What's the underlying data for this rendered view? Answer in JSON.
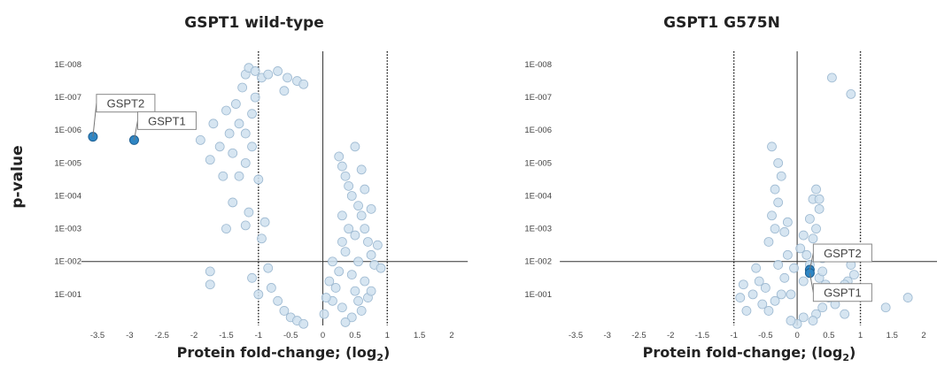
{
  "figure": {
    "ylabel": "p-value",
    "xlabel_main": "Protein fold-change; (log",
    "xlabel_sub": "2",
    "xlabel_close": ")"
  },
  "colors": {
    "background_point_fill": "#cfe0ee",
    "background_point_stroke": "#9db9d1",
    "highlight_fill": "#2f86c4",
    "highlight_stroke": "#1d5f93",
    "axis": "#333333"
  },
  "chart_data": [
    {
      "type": "scatter",
      "title": "GSPT1 wild-type",
      "xlabel": "Protein fold-change; (log2)",
      "ylabel": "p-value",
      "xlim": [
        -3.75,
        2.25
      ],
      "ylim_neglog10": [
        0,
        8.35
      ],
      "x_ticks": [
        "-3.5",
        "-3",
        "-2.5",
        "-2",
        "-1.5",
        "-1",
        "-0.5",
        "0",
        "0.5",
        "1",
        "1.5",
        "2"
      ],
      "y_ticks": [
        {
          "label": "1E-008",
          "v": 8
        },
        {
          "label": "1E-007",
          "v": 7
        },
        {
          "label": "1E-006",
          "v": 6
        },
        {
          "label": "1E-005",
          "v": 5
        },
        {
          "label": "1E-004",
          "v": 4
        },
        {
          "label": "1E-003",
          "v": 3
        },
        {
          "label": "1E-002",
          "v": 2
        },
        {
          "label": "1E-001",
          "v": 1
        }
      ],
      "threshold_p_neglog10": 2,
      "fold_change_thresholds": [
        -1,
        1
      ],
      "highlighted": [
        {
          "label": "GSPT2",
          "x": -3.57,
          "y": 5.8
        },
        {
          "label": "GSPT1",
          "x": -2.93,
          "y": 5.7
        }
      ],
      "background_points": [
        [
          -1.9,
          5.7
        ],
        [
          -1.75,
          5.1
        ],
        [
          -1.7,
          6.2
        ],
        [
          -1.6,
          5.5
        ],
        [
          -1.55,
          4.6
        ],
        [
          -1.5,
          6.6
        ],
        [
          -1.45,
          5.9
        ],
        [
          -1.4,
          5.3
        ],
        [
          -1.4,
          3.8
        ],
        [
          -1.35,
          6.8
        ],
        [
          -1.3,
          6.2
        ],
        [
          -1.3,
          4.6
        ],
        [
          -1.25,
          7.3
        ],
        [
          -1.2,
          5.9
        ],
        [
          -1.2,
          5.0
        ],
        [
          -1.15,
          3.5
        ],
        [
          -1.1,
          6.5
        ],
        [
          -1.1,
          5.5
        ],
        [
          -1.05,
          7.0
        ],
        [
          -1.0,
          4.5
        ],
        [
          -1.2,
          7.7
        ],
        [
          -1.15,
          7.9
        ],
        [
          -1.05,
          7.8
        ],
        [
          -0.95,
          7.6
        ],
        [
          -0.85,
          7.7
        ],
        [
          -0.7,
          7.8
        ],
        [
          -0.55,
          7.6
        ],
        [
          -0.4,
          7.5
        ],
        [
          -0.3,
          7.4
        ],
        [
          -0.6,
          7.2
        ],
        [
          -1.75,
          1.7
        ],
        [
          -1.75,
          1.3
        ],
        [
          -1.5,
          3.0
        ],
        [
          -1.2,
          3.1
        ],
        [
          -1.1,
          1.5
        ],
        [
          -1.0,
          1.0
        ],
        [
          -0.95,
          2.7
        ],
        [
          -0.9,
          3.2
        ],
        [
          -0.85,
          1.8
        ],
        [
          -0.8,
          1.2
        ],
        [
          -0.7,
          0.8
        ],
        [
          -0.6,
          0.5
        ],
        [
          -0.5,
          0.3
        ],
        [
          -0.4,
          0.2
        ],
        [
          -0.3,
          0.1
        ],
        [
          0.25,
          5.2
        ],
        [
          0.3,
          4.9
        ],
        [
          0.35,
          4.6
        ],
        [
          0.4,
          4.3
        ],
        [
          0.45,
          4.0
        ],
        [
          0.5,
          5.5
        ],
        [
          0.55,
          3.7
        ],
        [
          0.6,
          3.4
        ],
        [
          0.65,
          3.0
        ],
        [
          0.7,
          2.6
        ],
        [
          0.75,
          2.2
        ],
        [
          0.8,
          1.9
        ],
        [
          0.5,
          1.1
        ],
        [
          0.55,
          0.8
        ],
        [
          0.6,
          0.5
        ],
        [
          0.45,
          0.3
        ],
        [
          0.35,
          0.15
        ],
        [
          0.2,
          1.2
        ],
        [
          0.25,
          1.7
        ],
        [
          0.15,
          0.8
        ],
        [
          0.9,
          1.8
        ],
        [
          0.85,
          2.5
        ],
        [
          0.75,
          3.6
        ],
        [
          0.65,
          4.2
        ],
        [
          0.6,
          4.8
        ],
        [
          0.3,
          3.4
        ],
        [
          0.4,
          3.0
        ],
        [
          0.35,
          2.3
        ],
        [
          0.45,
          1.6
        ],
        [
          0.55,
          2.0
        ],
        [
          0.65,
          1.4
        ],
        [
          0.7,
          0.9
        ],
        [
          0.75,
          1.1
        ],
        [
          0.5,
          2.8
        ],
        [
          0.3,
          2.6
        ],
        [
          0.15,
          2.0
        ],
        [
          0.1,
          1.4
        ],
        [
          0.05,
          0.9
        ],
        [
          0.02,
          0.4
        ],
        [
          0.3,
          0.6
        ]
      ]
    },
    {
      "type": "scatter",
      "title": "GSPT1 G575N",
      "xlabel": "Protein fold-change; (log2)",
      "ylabel": "",
      "xlim": [
        -3.75,
        2.25
      ],
      "ylim_neglog10": [
        0,
        8.35
      ],
      "x_ticks": [
        "-3.5",
        "-3",
        "-2.5",
        "-2",
        "-1.5",
        "-1",
        "-0.5",
        "0",
        "0.5",
        "1",
        "1.5",
        "2"
      ],
      "y_ticks": [
        {
          "label": "1E-008",
          "v": 8
        },
        {
          "label": "1E-007",
          "v": 7
        },
        {
          "label": "1E-006",
          "v": 6
        },
        {
          "label": "1E-005",
          "v": 5
        },
        {
          "label": "1E-004",
          "v": 4
        },
        {
          "label": "1E-003",
          "v": 3
        },
        {
          "label": "1E-002",
          "v": 2
        },
        {
          "label": "1E-001",
          "v": 1
        }
      ],
      "threshold_p_neglog10": 2,
      "fold_change_thresholds": [
        -1,
        1
      ],
      "highlighted": [
        {
          "label": "GSPT2",
          "x": 0.2,
          "y": 1.75
        },
        {
          "label": "GSPT1",
          "x": 0.2,
          "y": 1.65
        }
      ],
      "background_points": [
        [
          0.55,
          7.6
        ],
        [
          0.85,
          7.1
        ],
        [
          -0.4,
          5.5
        ],
        [
          -0.3,
          5.0
        ],
        [
          -0.25,
          4.6
        ],
        [
          -0.35,
          4.2
        ],
        [
          -0.3,
          3.8
        ],
        [
          -0.4,
          3.4
        ],
        [
          -0.35,
          3.0
        ],
        [
          -0.45,
          2.6
        ],
        [
          0.3,
          4.2
        ],
        [
          0.25,
          3.9
        ],
        [
          0.35,
          3.6
        ],
        [
          0.2,
          3.3
        ],
        [
          0.3,
          3.0
        ],
        [
          0.25,
          2.7
        ],
        [
          0.35,
          2.4
        ],
        [
          0.15,
          2.2
        ],
        [
          0.4,
          2.1
        ],
        [
          0.2,
          1.9
        ],
        [
          -0.65,
          1.8
        ],
        [
          -0.6,
          1.4
        ],
        [
          -0.7,
          1.0
        ],
        [
          -0.5,
          1.2
        ],
        [
          -0.55,
          0.7
        ],
        [
          -0.45,
          0.5
        ],
        [
          -0.35,
          0.8
        ],
        [
          -0.25,
          1.0
        ],
        [
          -0.2,
          1.5
        ],
        [
          -0.15,
          2.2
        ],
        [
          0.45,
          1.3
        ],
        [
          0.5,
          0.9
        ],
        [
          0.6,
          0.7
        ],
        [
          0.35,
          1.5
        ],
        [
          0.4,
          0.6
        ],
        [
          0.3,
          0.4
        ],
        [
          0.25,
          0.2
        ],
        [
          0.1,
          0.3
        ],
        [
          0.0,
          0.1
        ],
        [
          -0.1,
          0.2
        ],
        [
          0.8,
          1.4
        ],
        [
          0.85,
          1.9
        ],
        [
          0.9,
          1.6
        ],
        [
          0.75,
          1.3
        ],
        [
          1.4,
          0.6
        ],
        [
          1.75,
          0.9
        ],
        [
          0.75,
          0.4
        ],
        [
          -0.85,
          1.3
        ],
        [
          -0.9,
          0.9
        ],
        [
          -0.8,
          0.5
        ],
        [
          -0.1,
          1.0
        ],
        [
          -0.05,
          1.8
        ],
        [
          0.05,
          2.4
        ],
        [
          0.1,
          2.8
        ],
        [
          -0.2,
          2.9
        ],
        [
          -0.15,
          3.2
        ],
        [
          0.35,
          3.9
        ],
        [
          0.4,
          1.7
        ],
        [
          0.1,
          1.4
        ],
        [
          -0.3,
          1.9
        ]
      ]
    }
  ]
}
